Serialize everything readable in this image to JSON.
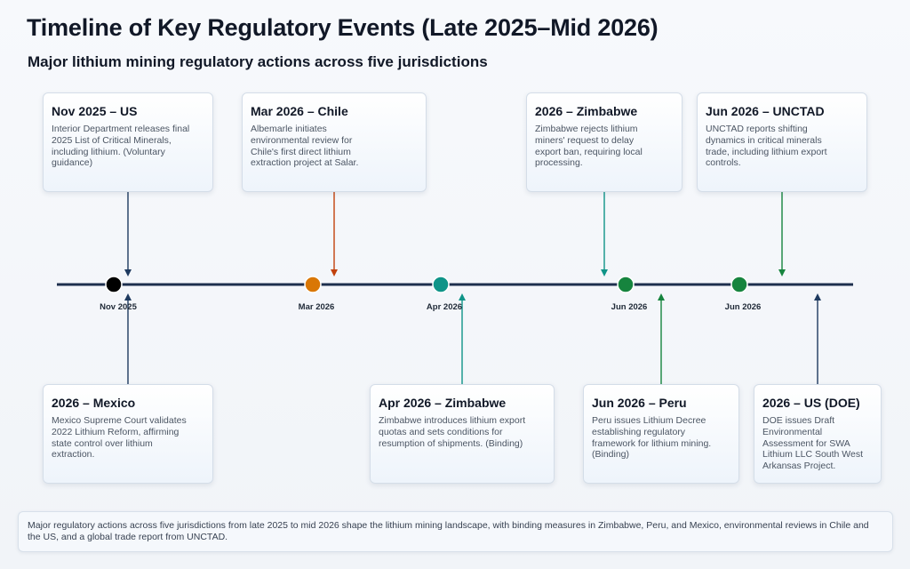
{
  "title": "Timeline of Key Regulatory Events (Late 2025–Mid 2026)",
  "subtitle": "Major lithium mining regulatory actions across five jurisdictions",
  "colors": {
    "axis": "#1e2f4d",
    "black": "#000000",
    "orange": "#d97706",
    "teal": "#0f9488",
    "green": "#16843e",
    "navy": "#1e3a5f"
  },
  "markers": [
    {
      "label": "Nov 2025",
      "color": "black"
    },
    {
      "label": "Mar 2026",
      "color": "orange"
    },
    {
      "label": "Apr 2026",
      "color": "teal"
    },
    {
      "label": "Jun 2026",
      "color": "green"
    },
    {
      "label": "Jun 2026",
      "color": "green"
    }
  ],
  "events_top": [
    {
      "heading": "Nov 2025 – US",
      "body": "Interior Department releases final 2025 List of Critical Minerals, including lithium. (Voluntary guidance)"
    },
    {
      "heading": "Mar 2026 – Chile",
      "body": "Albemarle initiates environmental review for Chile's first direct lithium extraction project at Salar."
    },
    {
      "heading": "2026 – Zimbabwe",
      "body": "Zimbabwe rejects lithium miners' request to delay export ban, requiring local processing."
    },
    {
      "heading": "Jun 2026 – UNCTAD",
      "body": "UNCTAD reports shifting dynamics in critical minerals trade, including lithium export controls."
    }
  ],
  "events_bottom": [
    {
      "heading": "2026 – Mexico",
      "body": "Mexico Supreme Court validates 2022 Lithium Reform, affirming state control over lithium extraction."
    },
    {
      "heading": "Apr 2026 – Zimbabwe",
      "body": "Zimbabwe introduces lithium export quotas and sets conditions for resumption of shipments. (Binding)"
    },
    {
      "heading": "Jun 2026 – Peru",
      "body": "Peru issues Lithium Decree establishing regulatory framework for lithium mining. (Binding)"
    },
    {
      "heading": "2026 – US (DOE)",
      "body": "DOE issues Draft Environmental Assessment for SWA Lithium LLC South West Arkansas Project."
    }
  ],
  "footer": "Major regulatory actions across five jurisdictions from late 2025 to mid 2026 shape the lithium mining landscape, with binding measures in Zimbabwe, Peru, and Mexico, environmental reviews in Chile and the US, and a global trade report from UNCTAD."
}
